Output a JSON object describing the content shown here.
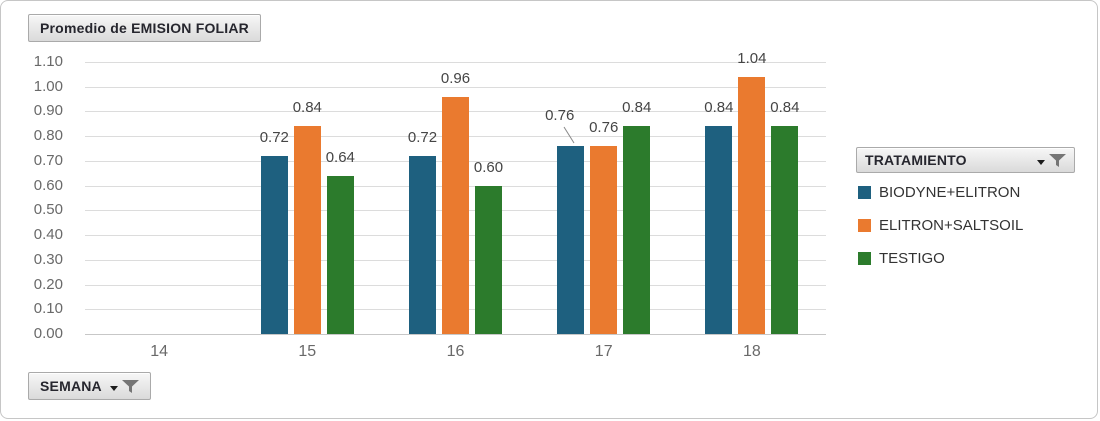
{
  "field_buttons": {
    "values": "Promedio de EMISION FOLIAR",
    "legend": "TRATAMIENTO",
    "axis": "SEMANA"
  },
  "chart_data": {
    "type": "bar",
    "title": "Promedio de EMISION FOLIAR",
    "categories": [
      "14",
      "15",
      "16",
      "17",
      "18"
    ],
    "series": [
      {
        "name": "BIODYNE+ELITRON",
        "color": "#1E607F",
        "values": [
          null,
          0.72,
          0.72,
          0.76,
          0.84
        ]
      },
      {
        "name": "ELITRON+SALTSOIL",
        "color": "#EA7A2F",
        "values": [
          null,
          0.84,
          0.96,
          0.76,
          1.04
        ]
      },
      {
        "name": "TESTIGO",
        "color": "#2C7B2C",
        "values": [
          null,
          0.64,
          0.6,
          0.84,
          0.84
        ]
      }
    ],
    "xlabel": "SEMANA",
    "ylabel": "",
    "ylim": [
      0.0,
      1.1
    ],
    "ytick_step": 0.1,
    "ytick_labels": [
      "0.00",
      "0.10",
      "0.20",
      "0.30",
      "0.40",
      "0.50",
      "0.60",
      "0.70",
      "0.80",
      "0.90",
      "1.00",
      "1.10"
    ],
    "grid": true,
    "data_labels": true,
    "legend_position": "right",
    "legend_title": "TRATAMIENTO"
  }
}
